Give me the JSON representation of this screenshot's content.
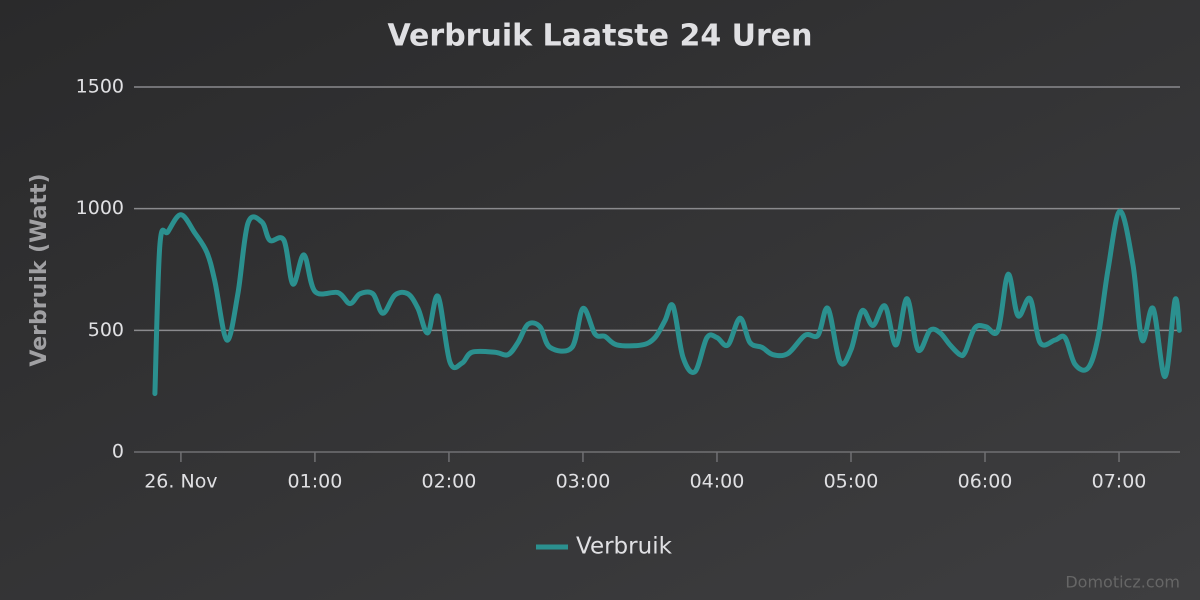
{
  "chart_data": {
    "type": "line",
    "title": "Verbruik Laatste 24 Uren",
    "y_label": "Verbruik (Watt)",
    "credits": "Domoticz.com",
    "x": [
      -0.194,
      -0.157,
      -0.097,
      0,
      0.104,
      0.194,
      0.254,
      0.343,
      0.425,
      0.5,
      0.604,
      0.664,
      0.769,
      0.836,
      0.918,
      1.0,
      1.172,
      1.261,
      1.336,
      1.433,
      1.507,
      1.597,
      1.694,
      1.769,
      1.843,
      1.918,
      2.007,
      2.097,
      2.172,
      2.343,
      2.44,
      2.515,
      2.59,
      2.679,
      2.754,
      2.918,
      3.0,
      3.09,
      3.164,
      3.254,
      3.44,
      3.537,
      3.612,
      3.672,
      3.746,
      3.836,
      3.925,
      4.0,
      4.082,
      4.172,
      4.246,
      4.336,
      4.418,
      4.53,
      4.657,
      4.754,
      4.828,
      4.918,
      5.0,
      5.082,
      5.164,
      5.254,
      5.336,
      5.418,
      5.5,
      5.59,
      5.664,
      5.739,
      5.813,
      5.851,
      5.925,
      6.007,
      6.097,
      6.172,
      6.246,
      6.336,
      6.41,
      6.522,
      6.597,
      6.672,
      6.769,
      6.843,
      6.918,
      7.007,
      7.104,
      7.172,
      7.254,
      7.343,
      7.418,
      7.45
    ],
    "series": [
      {
        "name": "Verbruik",
        "color": "#2b908f",
        "values": [
          240,
          850,
          905,
          975,
          900,
          820,
          700,
          460,
          650,
          940,
          945,
          870,
          870,
          690,
          810,
          660,
          655,
          610,
          650,
          650,
          570,
          645,
          650,
          590,
          490,
          640,
          370,
          365,
          410,
          410,
          400,
          450,
          525,
          515,
          430,
          430,
          590,
          485,
          475,
          440,
          440,
          470,
          540,
          600,
          390,
          330,
          470,
          470,
          440,
          550,
          450,
          430,
          400,
          405,
          480,
          480,
          590,
          370,
          420,
          580,
          520,
          600,
          440,
          630,
          420,
          500,
          490,
          440,
          400,
          410,
          510,
          515,
          500,
          730,
          560,
          630,
          450,
          460,
          470,
          360,
          345,
          470,
          750,
          990,
          770,
          460,
          590,
          310,
          625,
          500
        ]
      }
    ],
    "xlim": [
      -0.35,
      7.455
    ],
    "xticks": [
      {
        "value": 0,
        "label": "26. Nov"
      },
      {
        "value": 1,
        "label": "01:00"
      },
      {
        "value": 2,
        "label": "02:00"
      },
      {
        "value": 3,
        "label": "03:00"
      },
      {
        "value": 4,
        "label": "04:00"
      },
      {
        "value": 5,
        "label": "05:00"
      },
      {
        "value": 6,
        "label": "06:00"
      },
      {
        "value": 7,
        "label": "07:00"
      }
    ],
    "ylim": [
      0,
      1500
    ],
    "yticks": [
      0,
      500,
      1000,
      1500
    ],
    "grid": true,
    "legend": "bottom"
  }
}
